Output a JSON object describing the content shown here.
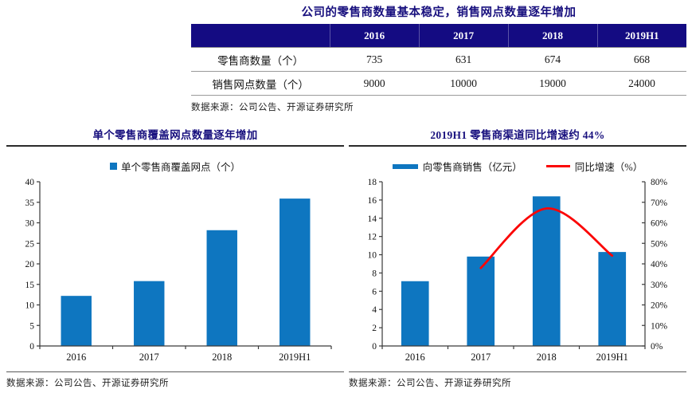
{
  "colors": {
    "navy": "#18107e",
    "header_bg": "#140b82",
    "bar_blue": "#0e76c0",
    "line_red": "#fb0505"
  },
  "chart_data": [
    {
      "type": "table",
      "title": "公司的零售商数量基本稳定，销售网点数量逐年增加",
      "columns": [
        "",
        "2016",
        "2017",
        "2018",
        "2019H1"
      ],
      "rows": [
        {
          "label": "零售商数量（个）",
          "values": [
            "735",
            "631",
            "674",
            "668"
          ]
        },
        {
          "label": "销售网点数量（个）",
          "values": [
            "9000",
            "10000",
            "19000",
            "24000"
          ]
        }
      ],
      "source": "数据来源：公司公告、开源证券研究所"
    },
    {
      "type": "bar",
      "title": "单个零售商覆盖网点数量逐年增加",
      "legend": [
        {
          "label": "单个零售商覆盖网点（个）",
          "color": "#0e76c0",
          "marker": "square"
        }
      ],
      "categories": [
        "2016",
        "2017",
        "2018",
        "2019H1"
      ],
      "values": [
        12.2,
        15.8,
        28.2,
        35.9
      ],
      "ylim": [
        0,
        40
      ],
      "ytick_step": 5,
      "grid": false,
      "source": "数据来源：公司公告、开源证券研究所"
    },
    {
      "type": "combo",
      "title": "2019H1 零售商渠道同比增速约 44%",
      "legend": [
        {
          "label": "向零售商销售（亿元）",
          "color": "#0e76c0",
          "marker": "bar"
        },
        {
          "label": "同比增速（%）",
          "color": "#fb0505",
          "marker": "line"
        }
      ],
      "categories": [
        "2016",
        "2017",
        "2018",
        "2019H1"
      ],
      "series": [
        {
          "name": "向零售商销售（亿元）",
          "type": "bar",
          "axis": "left",
          "values": [
            7.1,
            9.8,
            16.4,
            10.3
          ]
        },
        {
          "name": "同比增速（%）",
          "type": "line",
          "axis": "right",
          "values": [
            null,
            38,
            67,
            44
          ]
        }
      ],
      "ylim_left": [
        0,
        18
      ],
      "ytick_step_left": 2,
      "ylim_right": [
        0,
        80
      ],
      "ytick_step_right": 10,
      "right_tick_format": "percent",
      "grid": false,
      "source": "数据来源：公司公告、开源证券研究所"
    }
  ]
}
